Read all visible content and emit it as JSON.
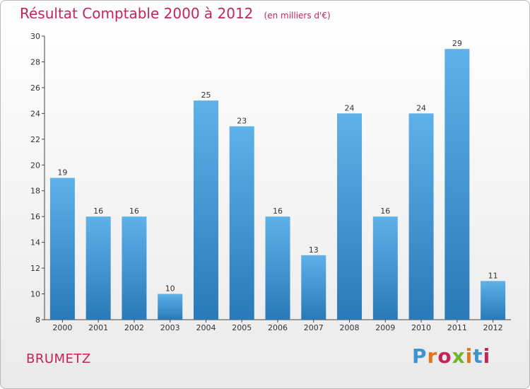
{
  "header": {
    "title": "Résultat Comptable 2000 à 2012",
    "subtitle": "(en milliers d'€)"
  },
  "footer": {
    "commune": "BRUMETZ",
    "brand": "Proxiti",
    "brand_colors": [
      "#3f93d2",
      "#e2771a",
      "#c3245a",
      "#72b62a",
      "#e2771a",
      "#3f93d2",
      "#c3245a"
    ]
  },
  "colors": {
    "bar_top": "#5eb1e9",
    "bar_bottom": "#2a79b8",
    "title": "#c3245a"
  },
  "chart_data": {
    "type": "bar",
    "title": "Résultat Comptable 2000 à 2012",
    "subtitle": "(en milliers d'€)",
    "xlabel": "",
    "ylabel": "",
    "ylim": [
      8,
      30
    ],
    "yticks": [
      8,
      10,
      12,
      14,
      16,
      18,
      20,
      22,
      24,
      26,
      28,
      30
    ],
    "grid": false,
    "categories": [
      "2000",
      "2001",
      "2002",
      "2003",
      "2004",
      "2005",
      "2006",
      "2007",
      "2008",
      "2009",
      "2010",
      "2011",
      "2012"
    ],
    "values": [
      19,
      16,
      16,
      10,
      25,
      23,
      16,
      13,
      24,
      16,
      24,
      29,
      11
    ]
  }
}
